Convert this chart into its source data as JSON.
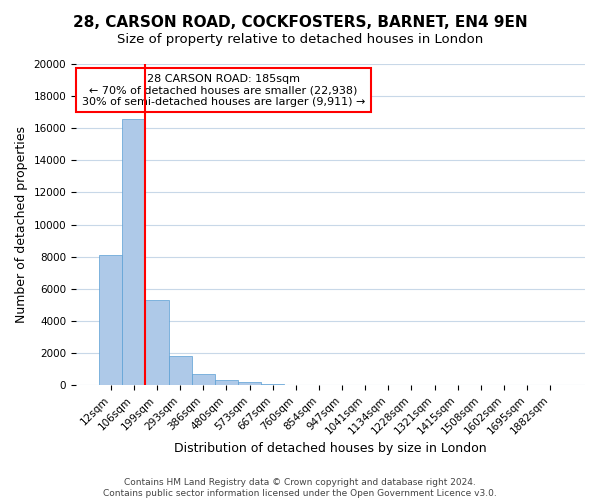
{
  "title": "28, CARSON ROAD, COCKFOSTERS, BARNET, EN4 9EN",
  "subtitle": "Size of property relative to detached houses in London",
  "xlabel": "Distribution of detached houses by size in London",
  "ylabel": "Number of detached properties",
  "bar_values": [
    8100,
    16600,
    5300,
    1800,
    700,
    300,
    200,
    100,
    0,
    0,
    0,
    0,
    0,
    0,
    0,
    0,
    0,
    0,
    0,
    0
  ],
  "bin_labels": [
    "12sqm",
    "106sqm",
    "199sqm",
    "293sqm",
    "386sqm",
    "480sqm",
    "573sqm",
    "667sqm",
    "760sqm",
    "854sqm",
    "947sqm",
    "1041sqm",
    "1134sqm",
    "1228sqm",
    "1321sqm",
    "1415sqm",
    "1508sqm",
    "1602sqm",
    "1695sqm",
    "1882sqm"
  ],
  "bar_color": "#aec9e8",
  "bar_edge_color": "#5a9fd4",
  "vline_color": "red",
  "vline_linewidth": 1.5,
  "vline_index": 1.5,
  "annotation_title": "28 CARSON ROAD: 185sqm",
  "annotation_line1": "← 70% of detached houses are smaller (22,938)",
  "annotation_line2": "30% of semi-detached houses are larger (9,911) →",
  "annotation_box_color": "white",
  "annotation_box_edgecolor": "red",
  "ylim": [
    0,
    20000
  ],
  "yticks": [
    0,
    2000,
    4000,
    6000,
    8000,
    10000,
    12000,
    14000,
    16000,
    18000,
    20000
  ],
  "footer_line1": "Contains HM Land Registry data © Crown copyright and database right 2024.",
  "footer_line2": "Contains public sector information licensed under the Open Government Licence v3.0.",
  "bg_color": "#ffffff",
  "grid_color": "#c8d8e8",
  "title_fontsize": 11,
  "subtitle_fontsize": 9.5,
  "axis_label_fontsize": 9,
  "tick_fontsize": 7.5,
  "footer_fontsize": 6.5,
  "annotation_fontsize": 8
}
